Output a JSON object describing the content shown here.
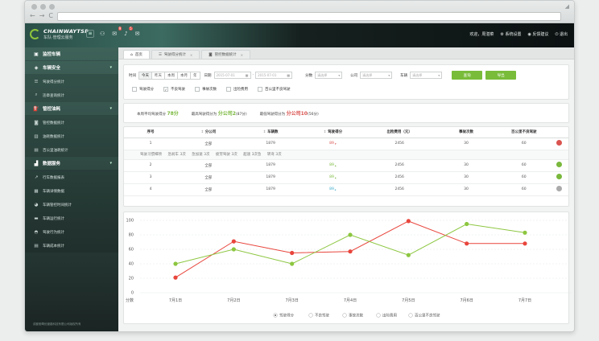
{
  "app": {
    "logo_title": "CHAINWAYTSP",
    "logo_sub": "车队·管理云服务",
    "menu_toggle": "≡"
  },
  "topbar": {
    "badges": {
      "b1": "9",
      "b2": "5"
    },
    "right": {
      "user": "欢迎，周湛菜",
      "settings": "系统设置",
      "feedback": "反馈建议",
      "logout": "退出"
    }
  },
  "sidebar": {
    "groups": [
      {
        "label": "监控车辆"
      },
      {
        "label": "车辆安全",
        "items": [
          "驾驶得分统计",
          "违章查询统计"
        ]
      },
      {
        "label": "管控油耗",
        "items": [
          "管控数据统计",
          "油耗数据统计",
          "百公里油耗统计"
        ]
      },
      {
        "label": "数据服务",
        "items": [
          "行车数据报表",
          "车辆详情数据",
          "车辆管控时间统计",
          "车辆运行统计",
          "驾驶行为统计",
          "车辆成本统计"
        ]
      }
    ],
    "footer": "成都驰骛优管路科技有限公司版权所有"
  },
  "tabs": [
    {
      "label": "首页"
    },
    {
      "label": "驾驶得分统计"
    },
    {
      "label": "管控数据统计"
    }
  ],
  "filter": {
    "time_label": "时间",
    "time_options": [
      "今天",
      "昨天",
      "本周",
      "本月",
      "年"
    ],
    "date_label": "日期",
    "date_start": "2015-07-01",
    "date_end": "2015-07-01",
    "score_label": "分数",
    "company_label": "公司",
    "vehicle_label": "车辆",
    "select_placeholder": "请选择",
    "query": "查询",
    "export": "导出",
    "checks": [
      {
        "label": "驾驶得分",
        "checked": false
      },
      {
        "label": "不良驾驶",
        "checked": true
      },
      {
        "label": "事故次数",
        "checked": false
      },
      {
        "label": "出险费用",
        "checked": false
      },
      {
        "label": "百公里不良驾驶",
        "checked": false
      }
    ]
  },
  "summary": {
    "avg_label": "本周平均驾驶得分",
    "avg_value": "78分",
    "best_label": "最高驾驶得分为",
    "best_value": "分公司2",
    "best_extra": "(87分)",
    "worst_label": "最低驾驶得分为",
    "worst_value": "分公司10",
    "worst_extra": "(56分)"
  },
  "table": {
    "headers": [
      "序号",
      "分公司",
      "车辆数",
      "驾驶得分",
      "出险费用（元）",
      "事故次数",
      "百公里不良驾驶"
    ],
    "rows": [
      {
        "no": "1",
        "company": "全部",
        "count": "1879",
        "score": "89",
        "cost": "2456",
        "acc": "30",
        "per100": "60",
        "flag": "#d9534f"
      },
      {
        "no": "2",
        "company": "全部",
        "count": "1879",
        "score": "89",
        "cost": "2456",
        "acc": "30",
        "per100": "60",
        "flag": "#79b83c"
      },
      {
        "no": "3",
        "company": "全部",
        "count": "1879",
        "score": "89",
        "cost": "2456",
        "acc": "30",
        "per100": "60",
        "flag": "#79b83c"
      },
      {
        "no": "4",
        "company": "全部",
        "count": "1879",
        "score": "89",
        "cost": "2456",
        "acc": "30",
        "per100": "60",
        "flag": "#aaaaaa"
      }
    ],
    "detail": [
      "驾驶习惯细项",
      "急刹车 3次",
      "急加速 3次",
      "疲劳驾驶 3次",
      "超速 3次急",
      "转弯 3次"
    ]
  },
  "chart_data": {
    "type": "line",
    "categories": [
      "7月1日",
      "7月2日",
      "7月3日",
      "7月4日",
      "7月5日",
      "7月6日",
      "7月7日"
    ],
    "ylabel": "分数",
    "ylim": [
      0,
      100
    ],
    "yticks": [
      0,
      20,
      40,
      60,
      80,
      100
    ],
    "series": [
      {
        "name": "驾驶得分",
        "color": "#e8453c",
        "values": [
          21,
          71,
          55,
          57,
          99,
          68,
          68
        ]
      },
      {
        "name": "不良驾驶",
        "color": "#8cc63f",
        "values": [
          40,
          60,
          40,
          80,
          52,
          95,
          83
        ]
      }
    ],
    "legend": [
      "驾驶得分",
      "不良驾驶",
      "事故次数",
      "出险费用",
      "百公里不良驾驶"
    ]
  }
}
